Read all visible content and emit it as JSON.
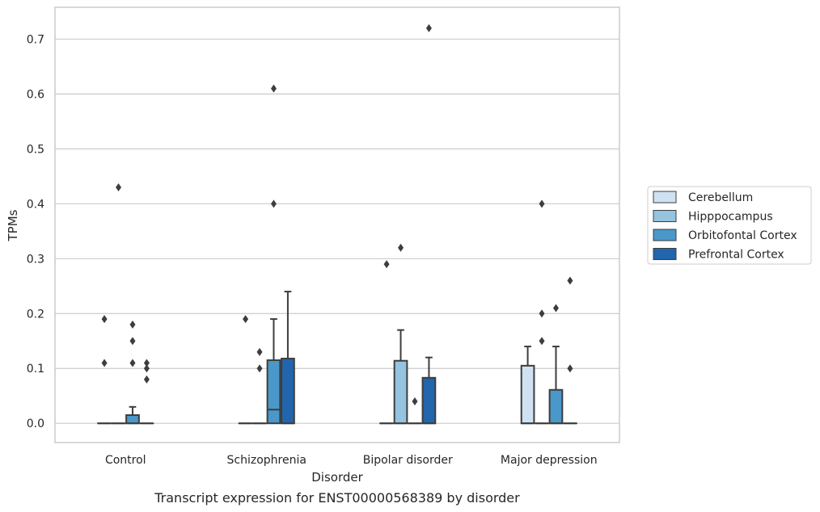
{
  "chart_data": {
    "type": "box",
    "caption": "Transcript expression for ENST00000568389 by disorder",
    "xlabel": "Disorder",
    "ylabel": "TPMs",
    "ylim": [
      -0.035,
      0.758
    ],
    "yticks": [
      "0.0",
      "0.1",
      "0.2",
      "0.3",
      "0.4",
      "0.5",
      "0.6",
      "0.7"
    ],
    "categories": [
      "Control",
      "Schizophrenia",
      "Bipolar disorder",
      "Major depression"
    ],
    "grid": true,
    "legend_position": "right",
    "series": [
      {
        "name": "Cerebellum",
        "color": "#d0e1f2",
        "boxes": [
          {
            "q1": 0,
            "median": 0,
            "q3": 0,
            "whislo": 0,
            "whishi": 0,
            "fliers": [
              0.19,
              0.11
            ]
          },
          {
            "q1": 0,
            "median": 0,
            "q3": 0,
            "whislo": 0,
            "whishi": 0,
            "fliers": [
              0.19
            ]
          },
          {
            "q1": 0,
            "median": 0,
            "q3": 0,
            "whislo": 0,
            "whishi": 0,
            "fliers": [
              0.29
            ]
          },
          {
            "q1": 0,
            "median": 0,
            "q3": 0.105,
            "whislo": 0,
            "whishi": 0.14,
            "fliers": []
          }
        ]
      },
      {
        "name": "Hipppocampus",
        "color": "#94c4df",
        "boxes": [
          {
            "q1": 0,
            "median": 0,
            "q3": 0,
            "whislo": 0,
            "whishi": 0,
            "fliers": [
              0.43
            ]
          },
          {
            "q1": 0,
            "median": 0,
            "q3": 0,
            "whislo": 0,
            "whishi": 0,
            "fliers": [
              0.13,
              0.1
            ]
          },
          {
            "q1": 0,
            "median": 0,
            "q3": 0.114,
            "whislo": 0,
            "whishi": 0.17,
            "fliers": [
              0.32
            ]
          },
          {
            "q1": 0,
            "median": 0,
            "q3": 0,
            "whislo": 0,
            "whishi": 0,
            "fliers": [
              0.4,
              0.2,
              0.15
            ]
          }
        ]
      },
      {
        "name": "Orbitofontal Cortex",
        "color": "#4a98c9",
        "boxes": [
          {
            "q1": 0,
            "median": 0,
            "q3": 0.015,
            "whislo": 0,
            "whishi": 0.03,
            "fliers": [
              0.18,
              0.15,
              0.11
            ]
          },
          {
            "q1": 0,
            "median": 0.025,
            "q3": 0.115,
            "whislo": 0,
            "whishi": 0.19,
            "fliers": [
              0.61,
              0.4
            ]
          },
          {
            "q1": 0,
            "median": 0,
            "q3": 0,
            "whislo": 0,
            "whishi": 0,
            "fliers": [
              0.04
            ]
          },
          {
            "q1": 0,
            "median": 0,
            "q3": 0.061,
            "whislo": 0,
            "whishi": 0.14,
            "fliers": [
              0.21
            ]
          }
        ]
      },
      {
        "name": "Prefrontal Cortex",
        "color": "#2166ac",
        "boxes": [
          {
            "q1": 0,
            "median": 0,
            "q3": 0,
            "whislo": 0,
            "whishi": 0,
            "fliers": [
              0.11,
              0.1,
              0.08
            ]
          },
          {
            "q1": 0,
            "median": 0,
            "q3": 0.118,
            "whislo": 0,
            "whishi": 0.24,
            "fliers": []
          },
          {
            "q1": 0,
            "median": 0,
            "q3": 0.083,
            "whislo": 0,
            "whishi": 0.12,
            "fliers": [
              0.72
            ]
          },
          {
            "q1": 0,
            "median": 0,
            "q3": 0,
            "whislo": 0,
            "whishi": 0,
            "fliers": [
              0.26,
              0.1
            ]
          }
        ]
      }
    ]
  },
  "colors": {
    "grid": "#cccccc",
    "frame": "#cccccc",
    "line": "#3d3d3d",
    "text": "#262626"
  }
}
